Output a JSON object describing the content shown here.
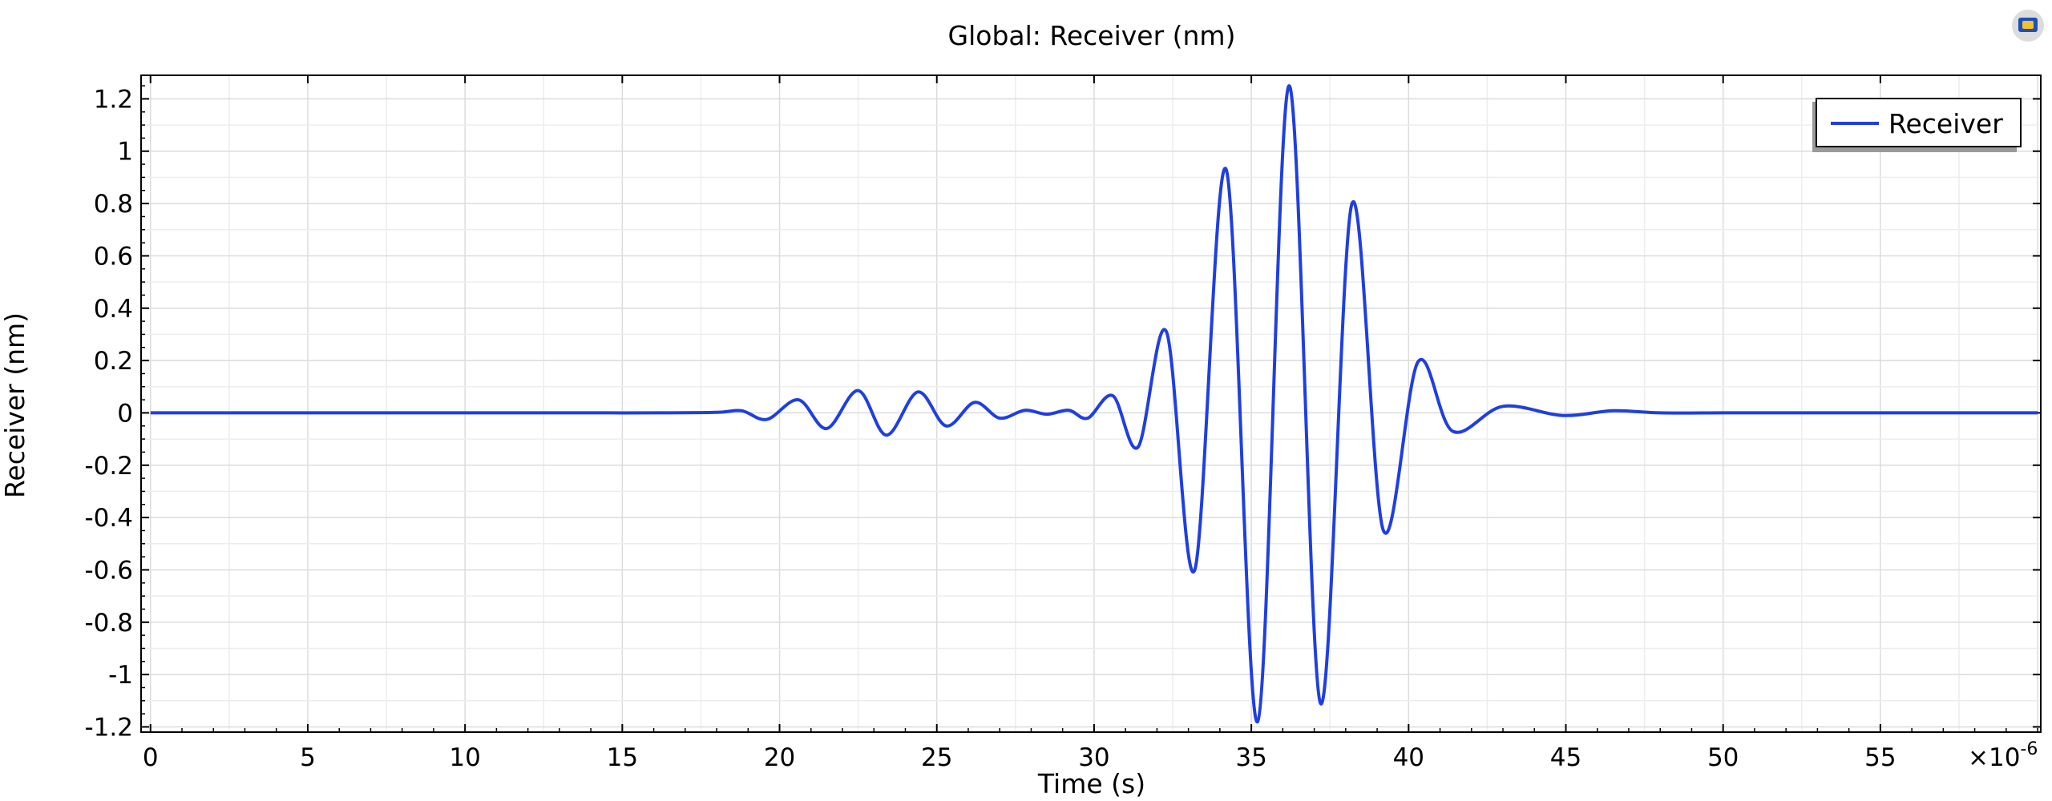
{
  "chart_data": {
    "type": "line",
    "title": "Global: Receiver (nm)",
    "xlabel": "Time (s)",
    "ylabel": "Receiver (nm)",
    "x_multiplier": "×10",
    "x_multiplier_exponent": "-6",
    "xlim": [
      -0.3,
      60.1
    ],
    "ylim": [
      -1.22,
      1.29
    ],
    "x_ticks": [
      0,
      5,
      10,
      15,
      20,
      25,
      30,
      35,
      40,
      45,
      50,
      55
    ],
    "y_ticks": [
      1.2,
      1,
      0.8,
      0.6,
      0.4,
      0.2,
      0,
      -0.2,
      -0.4,
      -0.6,
      -0.8,
      -1,
      -1.2
    ],
    "grid": true,
    "legend_position": "top-right",
    "series": [
      {
        "name": "Receiver",
        "color": "#1f3fe0",
        "x_unit_note": "x values in microseconds per ×10^-6 axis multiplier",
        "points": [
          [
            0,
            0.0
          ],
          [
            2,
            0.0
          ],
          [
            4,
            0.0
          ],
          [
            6,
            0.0
          ],
          [
            8,
            0.0
          ],
          [
            10,
            0.0
          ],
          [
            12,
            0.0
          ],
          [
            14,
            0.0
          ],
          [
            16,
            0.0
          ],
          [
            18,
            0.002
          ],
          [
            18.8,
            0.008
          ],
          [
            19.6,
            -0.025
          ],
          [
            20.6,
            0.05
          ],
          [
            21.5,
            -0.06
          ],
          [
            22.5,
            0.085
          ],
          [
            23.4,
            -0.085
          ],
          [
            24.4,
            0.08
          ],
          [
            25.3,
            -0.05
          ],
          [
            26.2,
            0.04
          ],
          [
            27.0,
            -0.02
          ],
          [
            27.8,
            0.01
          ],
          [
            28.5,
            -0.005
          ],
          [
            29.2,
            0.01
          ],
          [
            29.8,
            -0.02
          ],
          [
            30.6,
            0.065
          ],
          [
            31.4,
            -0.13
          ],
          [
            32.3,
            0.31
          ],
          [
            33.2,
            -0.6
          ],
          [
            34.2,
            0.93
          ],
          [
            35.2,
            -1.18
          ],
          [
            36.2,
            1.25
          ],
          [
            37.2,
            -1.11
          ],
          [
            38.2,
            0.8
          ],
          [
            39.2,
            -0.45
          ],
          [
            40.3,
            0.195
          ],
          [
            41.4,
            -0.07
          ],
          [
            43.0,
            0.025
          ],
          [
            44.9,
            -0.01
          ],
          [
            46.5,
            0.008
          ],
          [
            48,
            0.0
          ],
          [
            50,
            0.0
          ],
          [
            52,
            0.0
          ],
          [
            54,
            0.0
          ],
          [
            56,
            0.0
          ],
          [
            58,
            0.0
          ],
          [
            60,
            0.0
          ]
        ]
      }
    ]
  }
}
